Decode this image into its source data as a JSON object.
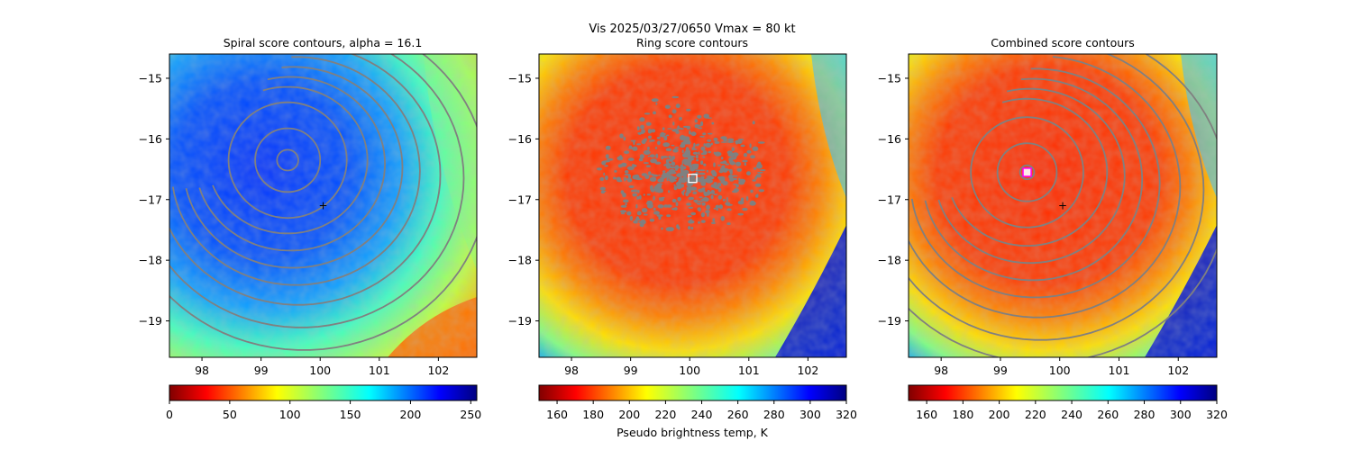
{
  "figure": {
    "suptitle_line1": "Vis  2025/03/27/0650    Vmax = 80 kt",
    "colorbar_label": "Pseudo brightness temp, K"
  },
  "colors": {
    "contour": "#808080",
    "marker": "#ffffff",
    "combined_marker_edge": "#ff00ff"
  },
  "chart_data": [
    {
      "type": "heatmap",
      "title": "Spiral score contours, alpha = 16.1",
      "xlim": [
        97.45,
        102.65
      ],
      "ylim": [
        -19.6,
        -14.6
      ],
      "xticks": [
        98,
        99,
        100,
        101,
        102
      ],
      "yticks": [
        -15,
        -16,
        -17,
        -18,
        -19
      ],
      "xtick_labels": [
        "98",
        "99",
        "100",
        "101",
        "102"
      ],
      "ytick_labels": [
        "−15",
        "−16",
        "−17",
        "−18",
        "−19"
      ],
      "center_marker": {
        "symbol": "+",
        "lon": 100.05,
        "lat": -17.1
      },
      "contour_center": {
        "lon": 99.45,
        "lat": -16.35
      },
      "colorbar": {
        "range": [
          0,
          255
        ],
        "ticks": [
          0,
          50,
          100,
          150,
          200,
          250
        ],
        "tick_labels": [
          "0",
          "50",
          "100",
          "150",
          "200",
          "250"
        ]
      }
    },
    {
      "type": "heatmap",
      "title": "Ring score contours",
      "xlim": [
        97.45,
        102.65
      ],
      "ylim": [
        -19.6,
        -14.6
      ],
      "xticks": [
        98,
        99,
        100,
        101,
        102
      ],
      "yticks": [
        -15,
        -16,
        -17,
        -18,
        -19
      ],
      "xtick_labels": [
        "98",
        "99",
        "100",
        "101",
        "102"
      ],
      "ytick_labels": [
        "−15",
        "−16",
        "−17",
        "−18",
        "−19"
      ],
      "center_marker": {
        "symbol": "square",
        "lon": 100.05,
        "lat": -16.65
      },
      "colorbar": {
        "range": [
          150,
          320
        ],
        "ticks": [
          160,
          180,
          200,
          220,
          240,
          260,
          280,
          300,
          320
        ],
        "tick_labels": [
          "160",
          "180",
          "200",
          "220",
          "240",
          "260",
          "280",
          "300",
          "320"
        ]
      }
    },
    {
      "type": "heatmap",
      "title": "Combined score contours",
      "xlim": [
        97.45,
        102.65
      ],
      "ylim": [
        -19.6,
        -14.6
      ],
      "xticks": [
        98,
        99,
        100,
        101,
        102
      ],
      "yticks": [
        -15,
        -16,
        -17,
        -18,
        -19
      ],
      "xtick_labels": [
        "98",
        "99",
        "100",
        "101",
        "102"
      ],
      "ytick_labels": [
        "−15",
        "−16",
        "−17",
        "−18",
        "−19"
      ],
      "center_marker": {
        "symbol": "+",
        "lon": 100.05,
        "lat": -17.1
      },
      "best_marker": {
        "symbol": "square",
        "lon": 99.45,
        "lat": -16.55
      },
      "contour_center": {
        "lon": 99.45,
        "lat": -16.55
      },
      "colorbar": {
        "range": [
          150,
          320
        ],
        "ticks": [
          160,
          180,
          200,
          220,
          240,
          260,
          280,
          300,
          320
        ],
        "tick_labels": [
          "160",
          "180",
          "200",
          "220",
          "240",
          "260",
          "280",
          "300",
          "320"
        ]
      }
    }
  ]
}
